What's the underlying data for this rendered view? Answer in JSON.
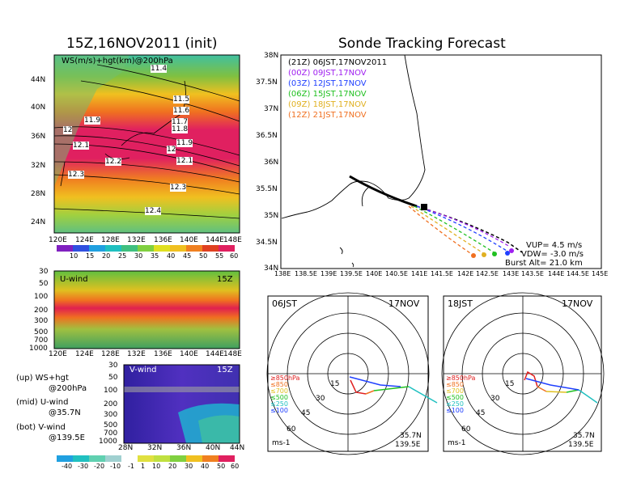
{
  "left_panel": {
    "title": "15Z,16NOV2011 (init)",
    "map": {
      "label": "WS(m/s)+hgt(km)@200hPa",
      "lat_ticks": [
        "44N",
        "40N",
        "36N",
        "32N",
        "28N",
        "24N"
      ],
      "lon_ticks": [
        "120E",
        "124E",
        "128E",
        "132E",
        "136E",
        "140E",
        "144E",
        "148E"
      ],
      "contour_labels": [
        "11.4",
        "11.5",
        "11.6",
        "11.7",
        "11.8",
        "11.9",
        "12",
        "12.1",
        "12.2",
        "12.3",
        "12.4"
      ],
      "colorbar_ticks": [
        "10",
        "15",
        "20",
        "25",
        "30",
        "35",
        "40",
        "45",
        "50",
        "55",
        "60"
      ]
    },
    "u_wind": {
      "label": "U-wind",
      "time": "15Z",
      "y_ticks": [
        "30",
        "50",
        "100",
        "200",
        "300",
        "500",
        "700",
        "1000"
      ],
      "x_ticks": [
        "120E",
        "124E",
        "128E",
        "132E",
        "136E",
        "140E",
        "144E",
        "148E"
      ]
    },
    "v_wind": {
      "label": "V-wind",
      "time": "15Z",
      "y_ticks": [
        "30",
        "50",
        "100",
        "200",
        "300",
        "500",
        "700",
        "1000"
      ],
      "x_ticks": [
        "28N",
        "32N",
        "36N",
        "40N",
        "44N"
      ],
      "colorbar_ticks": [
        "-40",
        "-30",
        "-20",
        "-10",
        "-1",
        "1",
        "10",
        "20",
        "30",
        "40",
        "50",
        "60"
      ]
    },
    "notes": [
      {
        "a": "(up) WS+hgt",
        "b": "@200hPa"
      },
      {
        "a": "(mid) U-wind",
        "b": "@35.7N"
      },
      {
        "a": "(bot) V-wind",
        "b": "@139.5E"
      }
    ]
  },
  "right_panel": {
    "title": "Sonde Tracking Forecast",
    "lat_ticks": [
      "38N",
      "37.5N",
      "37N",
      "36.5N",
      "36N",
      "35.5N",
      "35N",
      "34.5N",
      "34N"
    ],
    "lon_ticks": [
      "138E",
      "138.5E",
      "139E",
      "139.5E",
      "140E",
      "140.5E",
      "141E",
      "141.5E",
      "142E",
      "142.5E",
      "143E",
      "143.5E",
      "144E",
      "144.5E",
      "145E"
    ],
    "legend": [
      {
        "code": "(21Z)",
        "label": "06JST,17NOV2011",
        "color": "#000000"
      },
      {
        "code": "(00Z)",
        "label": "09JST,17NOV",
        "color": "#a020f0"
      },
      {
        "code": "(03Z)",
        "label": "12JST,17NOV",
        "color": "#2040ff"
      },
      {
        "code": "(06Z)",
        "label": "15JST,17NOV",
        "color": "#20c020"
      },
      {
        "code": "(09Z)",
        "label": "18JST,17NOV",
        "color": "#e0b020"
      },
      {
        "code": "(12Z)",
        "label": "21JST,17NOV",
        "color": "#f07020"
      }
    ],
    "params": [
      "VUP= 4.5 m/s",
      "VDW= -3.0 m/s",
      "Burst Alt= 21.0 km"
    ]
  },
  "hodographs": [
    {
      "time": "06JST",
      "date": "17NOV",
      "lat": "35.7N",
      "lon": "139.5E",
      "unit": "ms-1",
      "ring_labels": [
        "15",
        "30",
        "45",
        "60"
      ],
      "levels": [
        {
          "t": "≥850hPa",
          "c": "#e02020"
        },
        {
          "t": "≤850",
          "c": "#f07020"
        },
        {
          "t": "≤700",
          "c": "#e0c020"
        },
        {
          "t": "≤500",
          "c": "#20c020"
        },
        {
          "t": "≤250",
          "c": "#20c0c0"
        },
        {
          "t": "≤100",
          "c": "#2040ff"
        }
      ]
    },
    {
      "time": "18JST",
      "date": "17NOV",
      "lat": "35.7N",
      "lon": "139.5E",
      "unit": "ms-1",
      "ring_labels": [
        "15",
        "30",
        "45",
        "60"
      ],
      "levels": [
        {
          "t": "≥850hPa",
          "c": "#e02020"
        },
        {
          "t": "≤850",
          "c": "#f07020"
        },
        {
          "t": "≤700",
          "c": "#e0c020"
        },
        {
          "t": "≤500",
          "c": "#20c020"
        },
        {
          "t": "≤250",
          "c": "#20c0c0"
        },
        {
          "t": "≤100",
          "c": "#2040ff"
        }
      ]
    }
  ],
  "chart_data": [
    {
      "type": "heatmap",
      "title": "15Z,16NOV2011 (init)",
      "xlabel": "",
      "ylabel": "",
      "x": [
        "120E",
        "124E",
        "128E",
        "132E",
        "136E",
        "140E",
        "144E",
        "148E"
      ],
      "y": [
        "24N",
        "28N",
        "32N",
        "36N",
        "40N",
        "44N"
      ],
      "series": [
        {
          "name": "WS(m/s)+hgt(km)@200hPa"
        }
      ]
    },
    {
      "type": "line",
      "title": "Sonde Tracking Forecast",
      "xlabel": "",
      "ylabel": "",
      "xlim": [
        138,
        145
      ],
      "ylim": [
        34,
        38
      ],
      "series": [
        {
          "name": "06JST,17NOV2011",
          "color": "#000000",
          "x": [
            139.5,
            140.2,
            140.8,
            141.1,
            141.6,
            142.3,
            143.0,
            143.4
          ],
          "y": [
            35.72,
            35.45,
            35.25,
            35.15,
            35.0,
            34.8,
            34.52,
            34.32
          ]
        },
        {
          "name": "09JST,17NOV",
          "color": "#a020f0",
          "x": [
            139.5,
            140.2,
            140.8,
            141.1,
            141.6,
            142.2,
            142.8,
            143.3
          ],
          "y": [
            35.72,
            35.45,
            35.25,
            35.15,
            35.0,
            34.82,
            34.55,
            34.32
          ]
        },
        {
          "name": "12JST,17NOV",
          "color": "#2040ff",
          "x": [
            139.5,
            140.2,
            140.8,
            141.1,
            141.6,
            142.2,
            142.8,
            143.2
          ],
          "y": [
            35.72,
            35.44,
            35.24,
            35.15,
            34.98,
            34.78,
            34.55,
            34.34
          ]
        },
        {
          "name": "15JST,17NOV",
          "color": "#20c020",
          "x": [
            139.5,
            140.2,
            140.8,
            141.0,
            141.5,
            142.0,
            142.6,
            143.0
          ],
          "y": [
            35.72,
            35.44,
            35.24,
            35.13,
            34.95,
            34.72,
            34.48,
            34.33
          ]
        },
        {
          "name": "18JST,17NOV",
          "color": "#e0b020",
          "x": [
            139.5,
            140.2,
            140.7,
            140.9,
            141.3,
            141.8,
            142.4,
            142.8
          ],
          "y": [
            35.72,
            35.43,
            35.23,
            35.1,
            34.9,
            34.68,
            34.45,
            34.3
          ]
        },
        {
          "name": "21JST,17NOV",
          "color": "#f07020",
          "x": [
            139.5,
            140.2,
            140.6,
            140.8,
            141.2,
            141.7,
            142.2,
            142.6
          ],
          "y": [
            35.72,
            35.42,
            35.22,
            35.08,
            34.85,
            34.62,
            34.42,
            34.28
          ]
        }
      ]
    },
    {
      "type": "line",
      "title": "06JST 17NOV",
      "xlabel": "",
      "ylabel": "",
      "series": [
        {
          "name": "hodograph",
          "x": [
            0,
            8,
            18,
            24,
            30,
            42,
            50
          ],
          "y": [
            0,
            -2,
            -4,
            -5,
            -6,
            -8,
            -10
          ]
        }
      ]
    },
    {
      "type": "line",
      "title": "18JST 17NOV",
      "xlabel": "",
      "ylabel": "",
      "series": [
        {
          "name": "hodograph",
          "x": [
            0,
            6,
            14,
            22,
            30,
            40,
            48
          ],
          "y": [
            0,
            -3,
            -6,
            -8,
            -9,
            -10,
            -12
          ]
        }
      ]
    }
  ]
}
